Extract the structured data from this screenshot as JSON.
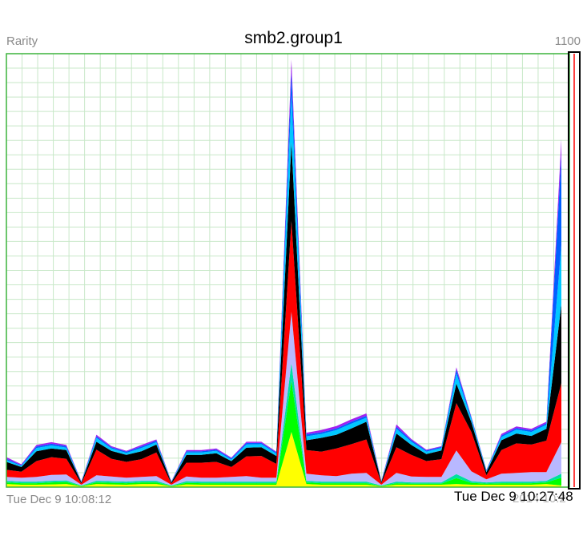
{
  "chart_data": {
    "type": "area",
    "title": "smb2.group1",
    "ylabel": "Rarity",
    "ylim": [
      0,
      1100
    ],
    "y_max_label": "1100",
    "x_start_label": "Tue Dec 9 10:08:12",
    "x_end_label": "Tue Dec 9 10:27:48",
    "x_end_ghost_label": "2014 10:2",
    "grid": true,
    "legend": "none",
    "colors": [
      "#ffff00",
      "#00ff00",
      "#00e0a0",
      "#b8b8ff",
      "#ff0000",
      "#000000",
      "#00c8ff",
      "#0060ff",
      "#a020f0"
    ],
    "colors_note_hidden": true,
    "series": [
      {
        "values": [
          8,
          6,
          6,
          7,
          8,
          2,
          8,
          7,
          6,
          8,
          8,
          2,
          7,
          6,
          6,
          6,
          6,
          6,
          6,
          140,
          8,
          6,
          6,
          6,
          6,
          2,
          6,
          6,
          6,
          6,
          8,
          6,
          6,
          6,
          6,
          6,
          8,
          4
        ]
      },
      {
        "values": [
          4,
          4,
          4,
          5,
          5,
          1,
          4,
          4,
          4,
          4,
          4,
          1,
          4,
          4,
          4,
          4,
          4,
          4,
          4,
          130,
          4,
          4,
          4,
          4,
          4,
          1,
          4,
          3,
          3,
          3,
          15,
          5,
          3,
          4,
          4,
          4,
          4,
          20
        ]
      },
      {
        "values": [
          4,
          4,
          4,
          4,
          4,
          1,
          4,
          4,
          4,
          4,
          4,
          1,
          4,
          4,
          4,
          4,
          4,
          4,
          4,
          45,
          4,
          4,
          4,
          4,
          4,
          1,
          4,
          3,
          3,
          3,
          10,
          4,
          3,
          4,
          4,
          4,
          4,
          10
        ]
      },
      {
        "values": [
          10,
          10,
          12,
          15,
          15,
          2,
          14,
          12,
          10,
          10,
          12,
          2,
          12,
          10,
          10,
          12,
          14,
          10,
          10,
          130,
          18,
          16,
          14,
          20,
          22,
          2,
          22,
          15,
          14,
          14,
          60,
          25,
          8,
          20,
          22,
          24,
          22,
          80
        ]
      },
      {
        "values": [
          18,
          15,
          40,
          45,
          40,
          3,
          65,
          45,
          40,
          45,
          60,
          3,
          35,
          38,
          40,
          25,
          50,
          55,
          35,
          230,
          60,
          60,
          70,
          75,
          85,
          4,
          65,
          55,
          40,
          45,
          120,
          100,
          10,
          60,
          75,
          70,
          80,
          150
        ]
      },
      {
        "values": [
          20,
          12,
          25,
          22,
          22,
          3,
          20,
          20,
          18,
          20,
          20,
          3,
          20,
          20,
          22,
          15,
          22,
          22,
          20,
          200,
          25,
          35,
          35,
          40,
          45,
          3,
          35,
          25,
          18,
          22,
          50,
          25,
          8,
          25,
          25,
          22,
          30,
          200
        ]
      },
      {
        "values": [
          5,
          3,
          8,
          8,
          6,
          1,
          10,
          6,
          5,
          8,
          6,
          1,
          6,
          6,
          6,
          4,
          8,
          8,
          6,
          120,
          10,
          10,
          12,
          12,
          10,
          1,
          12,
          8,
          6,
          6,
          25,
          8,
          3,
          8,
          10,
          10,
          10,
          150
        ]
      },
      {
        "values": [
          3,
          2,
          4,
          4,
          4,
          1,
          4,
          3,
          3,
          4,
          4,
          1,
          3,
          3,
          3,
          3,
          4,
          3,
          3,
          60,
          5,
          4,
          4,
          5,
          5,
          1,
          5,
          4,
          3,
          3,
          10,
          4,
          2,
          4,
          4,
          4,
          4,
          230
        ]
      },
      {
        "values": [
          4,
          2,
          4,
          4,
          3,
          1,
          4,
          3,
          2,
          4,
          3,
          1,
          3,
          3,
          3,
          2,
          3,
          3,
          2,
          30,
          4,
          6,
          6,
          6,
          6,
          1,
          6,
          3,
          2,
          2,
          6,
          2,
          1,
          4,
          4,
          4,
          4,
          40
        ]
      }
    ]
  }
}
